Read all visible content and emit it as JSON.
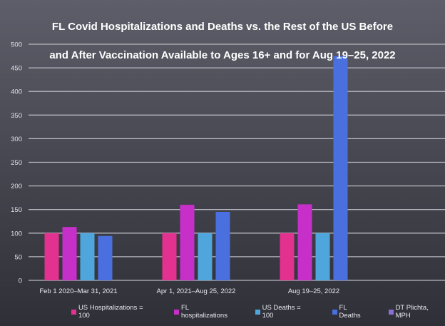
{
  "chart_data": {
    "type": "bar",
    "title_line1": "FL Covid Hospitalizations and Deaths vs. the Rest of the US Before",
    "title_line2": "and After Vaccination Available to Ages 16+ and for Aug 19–25, 2022",
    "xlabel": "",
    "ylabel": "",
    "ylim": [
      0,
      500
    ],
    "yticks": [
      0,
      50,
      100,
      150,
      200,
      250,
      300,
      350,
      400,
      450,
      500
    ],
    "grid": true,
    "legend_position": "bottom",
    "categories": [
      "Feb 1 2020–Mar 31, 2021",
      "Apr 1, 2021–Aug 25, 2022",
      "Aug 19–25, 2022"
    ],
    "series": [
      {
        "name": "US Hospitalizations = 100",
        "color": "#e2318f",
        "values": [
          100,
          100,
          100
        ]
      },
      {
        "name": "FL hospitalizations",
        "color": "#c72fc9",
        "values": [
          113,
          160,
          161
        ]
      },
      {
        "name": "US Deaths = 100",
        "color": "#4ea6dc",
        "values": [
          100,
          100,
          100
        ]
      },
      {
        "name": "FL Deaths",
        "color": "#4a70e0",
        "values": [
          94,
          145,
          475
        ]
      },
      {
        "name": "DT Plichta, MPH",
        "color": "#8a70d6",
        "values": [
          null,
          null,
          null
        ]
      }
    ]
  }
}
